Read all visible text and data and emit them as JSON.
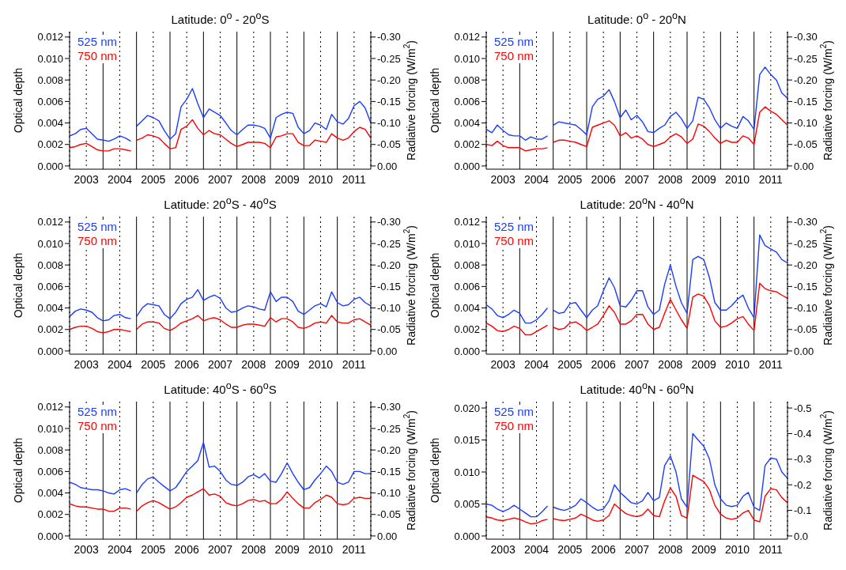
{
  "chart_data": [
    {
      "type": "line",
      "title": "Latitude: 0$^{o}$ - 20$^{o}$S",
      "ylabel": "Optical depth",
      "y2label": "Radiative  forcing (W/m$^{2}$)",
      "legend": "top left",
      "grid": "x",
      "x": [
        2003,
        2003.17,
        2003.33,
        2003.5,
        2003.67,
        2003.83,
        2004,
        2004.17,
        2004.33,
        2004.5,
        2004.67,
        2004.83,
        2004.92,
        2005,
        2005.17,
        2005.33,
        2005.5,
        2005.67,
        2005.83,
        2006,
        2006.17,
        2006.33,
        2006.5,
        2006.67,
        2006.83,
        2007,
        2007.17,
        2007.33,
        2007.5,
        2007.67,
        2007.83,
        2008,
        2008.17,
        2008.33,
        2008.5,
        2008.67,
        2008.83,
        2009,
        2009.17,
        2009.33,
        2009.5,
        2009.67,
        2009.83,
        2010,
        2010.17,
        2010.33,
        2010.5,
        2010.67,
        2010.83,
        2011,
        2011.17,
        2011.33,
        2011.5,
        2011.67,
        2011.83,
        2012
      ],
      "series": [
        {
          "name": "525 nm",
          "color": "#1a3dff",
          "values": [
            0.0028,
            0.003,
            0.0034,
            0.0035,
            0.003,
            0.0025,
            0.0024,
            0.0023,
            0.0025,
            0.0028,
            0.0026,
            0.0023,
            null,
            0.0037,
            0.0042,
            0.0047,
            0.0045,
            0.0042,
            0.0033,
            0.0025,
            0.003,
            0.0055,
            0.0062,
            0.0072,
            0.0058,
            0.0045,
            0.0053,
            0.005,
            0.0047,
            0.004,
            0.0033,
            0.0029,
            0.0034,
            0.0038,
            0.0038,
            0.0037,
            0.0035,
            0.0026,
            0.0045,
            0.0048,
            0.005,
            0.0049,
            0.0036,
            0.003,
            0.0033,
            0.004,
            0.0038,
            0.0034,
            0.0048,
            0.0041,
            0.0039,
            0.0044,
            0.0056,
            0.006,
            0.0054,
            0.004
          ]
        },
        {
          "name": "750 nm",
          "color": "#ff0000",
          "values": [
            0.0017,
            0.0018,
            0.002,
            0.0021,
            0.0018,
            0.0015,
            0.0014,
            0.0014,
            0.0016,
            0.0016,
            0.0015,
            0.0014,
            null,
            0.0024,
            0.0026,
            0.0029,
            0.0028,
            0.0026,
            0.0021,
            0.0016,
            0.0017,
            0.0034,
            0.0037,
            0.0043,
            0.0035,
            0.0029,
            0.0033,
            0.003,
            0.0029,
            0.0025,
            0.0021,
            0.0018,
            0.002,
            0.0022,
            0.0022,
            0.0022,
            0.0021,
            0.0017,
            0.0027,
            0.0028,
            0.003,
            0.003,
            0.0022,
            0.0019,
            0.0019,
            0.0024,
            0.0023,
            0.0022,
            0.003,
            0.0026,
            0.0024,
            0.0026,
            0.0032,
            0.0036,
            0.0034,
            0.0026
          ]
        }
      ],
      "xlim": [
        2003,
        2012
      ],
      "xticks": [
        {
          "value": 2003.5,
          "label": "2003"
        },
        {
          "value": 2004.5,
          "label": "2004"
        },
        {
          "value": 2005.5,
          "label": "2005"
        },
        {
          "value": 2006.5,
          "label": "2006"
        },
        {
          "value": 2007.5,
          "label": "2007"
        },
        {
          "value": 2008.5,
          "label": "2008"
        },
        {
          "value": 2009.5,
          "label": "2009"
        },
        {
          "value": 2010.5,
          "label": "2010"
        },
        {
          "value": 2011.5,
          "label": "2011"
        }
      ],
      "ylim": [
        -0.0003,
        0.0125
      ],
      "yticks": [
        {
          "value": 0,
          "label": "0.000"
        },
        {
          "value": 0.002,
          "label": "0.002"
        },
        {
          "value": 0.004,
          "label": "0.004"
        },
        {
          "value": 0.006,
          "label": "0.006"
        },
        {
          "value": 0.008,
          "label": "0.008"
        },
        {
          "value": 0.01,
          "label": "0.010"
        },
        {
          "value": 0.012,
          "label": "0.012"
        }
      ],
      "y2lim": [
        0.0075,
        -0.3125
      ],
      "y2ticks": [
        {
          "value": 0,
          "label": "0.00"
        },
        {
          "value": -0.05,
          "label": "-0.05"
        },
        {
          "value": -0.1,
          "label": "-0.10"
        },
        {
          "value": -0.15,
          "label": "-0.15"
        },
        {
          "value": -0.2,
          "label": "-0.20"
        },
        {
          "value": -0.25,
          "label": "-0.25"
        },
        {
          "value": -0.3,
          "label": "-0.30"
        }
      ],
      "ref_lines": [
        {
          "axis": "x",
          "value": 2004
        },
        {
          "axis": "x",
          "value": 2005
        },
        {
          "axis": "x",
          "value": 2006
        },
        {
          "axis": "x",
          "value": 2007
        },
        {
          "axis": "x",
          "value": 2008
        },
        {
          "axis": "x",
          "value": 2009
        },
        {
          "axis": "x",
          "value": 2010
        },
        {
          "axis": "x",
          "value": 2011
        }
      ]
    },
    {
      "type": "line",
      "title": "Latitude: 0$^{o}$ - 20$^{o}$N",
      "ylabel": "Optical depth",
      "y2label": "Radiative  forcing (W/m$^{2}$)",
      "legend": "top left",
      "grid": "x",
      "x": [
        2003,
        2003.17,
        2003.33,
        2003.5,
        2003.67,
        2003.83,
        2004,
        2004.17,
        2004.33,
        2004.5,
        2004.67,
        2004.83,
        2004.92,
        2005,
        2005.17,
        2005.33,
        2005.5,
        2005.67,
        2005.83,
        2006,
        2006.17,
        2006.33,
        2006.5,
        2006.67,
        2006.83,
        2007,
        2007.17,
        2007.33,
        2007.5,
        2007.67,
        2007.83,
        2008,
        2008.17,
        2008.33,
        2008.5,
        2008.67,
        2008.83,
        2009,
        2009.17,
        2009.33,
        2009.5,
        2009.67,
        2009.83,
        2010,
        2010.17,
        2010.33,
        2010.5,
        2010.67,
        2010.83,
        2011,
        2011.17,
        2011.33,
        2011.5,
        2011.67,
        2011.83,
        2012
      ],
      "series": [
        {
          "name": "525 nm",
          "color": "#1a3dff",
          "values": [
            0.0034,
            0.0031,
            0.0038,
            0.0033,
            0.0029,
            0.0028,
            0.0028,
            0.0024,
            0.0027,
            0.0025,
            0.0025,
            0.0028,
            null,
            0.0038,
            0.0041,
            0.004,
            0.0039,
            0.0038,
            0.0034,
            0.0029,
            0.0055,
            0.0062,
            0.0065,
            0.0071,
            0.006,
            0.0045,
            0.0052,
            0.0043,
            0.0047,
            0.0041,
            0.0032,
            0.0031,
            0.0035,
            0.0038,
            0.0046,
            0.005,
            0.0044,
            0.0035,
            0.0042,
            0.0064,
            0.0062,
            0.0054,
            0.0043,
            0.0035,
            0.004,
            0.0037,
            0.0035,
            0.0046,
            0.0042,
            0.0034,
            0.0085,
            0.0092,
            0.0085,
            0.008,
            0.0068,
            0.0063
          ]
        },
        {
          "name": "750 nm",
          "color": "#ff0000",
          "values": [
            0.002,
            0.0019,
            0.0023,
            0.0019,
            0.0017,
            0.0017,
            0.0017,
            0.0014,
            0.0015,
            0.0016,
            0.0016,
            0.0017,
            null,
            0.0022,
            0.0024,
            0.0024,
            0.0023,
            0.0022,
            0.002,
            0.0018,
            0.0036,
            0.0038,
            0.004,
            0.0042,
            0.0038,
            0.0028,
            0.0031,
            0.0026,
            0.0028,
            0.0025,
            0.002,
            0.0018,
            0.002,
            0.0022,
            0.0027,
            0.003,
            0.0027,
            0.0021,
            0.0025,
            0.0039,
            0.0037,
            0.0032,
            0.0026,
            0.0021,
            0.0024,
            0.0022,
            0.0022,
            0.0028,
            0.0026,
            0.002,
            0.005,
            0.0055,
            0.0051,
            0.0048,
            0.0043,
            0.0038
          ]
        }
      ],
      "xlim": [
        2003,
        2012
      ],
      "xticks": [
        {
          "value": 2003.5,
          "label": "2003"
        },
        {
          "value": 2004.5,
          "label": "2004"
        },
        {
          "value": 2005.5,
          "label": "2005"
        },
        {
          "value": 2006.5,
          "label": "2006"
        },
        {
          "value": 2007.5,
          "label": "2007"
        },
        {
          "value": 2008.5,
          "label": "2008"
        },
        {
          "value": 2009.5,
          "label": "2009"
        },
        {
          "value": 2010.5,
          "label": "2010"
        },
        {
          "value": 2011.5,
          "label": "2011"
        }
      ],
      "ylim": [
        -0.0003,
        0.0125
      ],
      "yticks": [
        {
          "value": 0,
          "label": "0.000"
        },
        {
          "value": 0.002,
          "label": "0.002"
        },
        {
          "value": 0.004,
          "label": "0.004"
        },
        {
          "value": 0.006,
          "label": "0.006"
        },
        {
          "value": 0.008,
          "label": "0.008"
        },
        {
          "value": 0.01,
          "label": "0.010"
        },
        {
          "value": 0.012,
          "label": "0.012"
        }
      ],
      "y2lim": [
        0.0075,
        -0.3125
      ],
      "y2ticks": [
        {
          "value": 0,
          "label": "0.00"
        },
        {
          "value": -0.05,
          "label": "-0.05"
        },
        {
          "value": -0.1,
          "label": "-0.10"
        },
        {
          "value": -0.15,
          "label": "-0.15"
        },
        {
          "value": -0.2,
          "label": "-0.20"
        },
        {
          "value": -0.25,
          "label": "-0.25"
        },
        {
          "value": -0.3,
          "label": "-0.30"
        }
      ],
      "ref_lines": [
        {
          "axis": "x",
          "value": 2004
        },
        {
          "axis": "x",
          "value": 2005
        },
        {
          "axis": "x",
          "value": 2006
        },
        {
          "axis": "x",
          "value": 2007
        },
        {
          "axis": "x",
          "value": 2008
        },
        {
          "axis": "x",
          "value": 2009
        },
        {
          "axis": "x",
          "value": 2010
        },
        {
          "axis": "x",
          "value": 2011
        }
      ]
    },
    {
      "type": "line",
      "title": "Latitude: 20$^{o}$S - 40$^{o}$S",
      "ylabel": "Optical depth",
      "y2label": "Radiative  forcing (W/m$^{2}$)",
      "legend": "top left",
      "grid": "x",
      "x": [
        2003,
        2003.17,
        2003.33,
        2003.5,
        2003.67,
        2003.83,
        2004,
        2004.17,
        2004.33,
        2004.5,
        2004.67,
        2004.83,
        2004.92,
        2005,
        2005.17,
        2005.33,
        2005.5,
        2005.67,
        2005.83,
        2006,
        2006.17,
        2006.33,
        2006.5,
        2006.67,
        2006.83,
        2007,
        2007.17,
        2007.33,
        2007.5,
        2007.67,
        2007.83,
        2008,
        2008.17,
        2008.33,
        2008.5,
        2008.67,
        2008.83,
        2009,
        2009.17,
        2009.33,
        2009.5,
        2009.67,
        2009.83,
        2010,
        2010.17,
        2010.33,
        2010.5,
        2010.67,
        2010.83,
        2011,
        2011.17,
        2011.33,
        2011.5,
        2011.67,
        2011.83,
        2012
      ],
      "series": [
        {
          "name": "525 nm",
          "color": "#1a3dff",
          "values": [
            0.0032,
            0.0037,
            0.0039,
            0.0038,
            0.0036,
            0.0031,
            0.0028,
            0.0029,
            0.0033,
            0.0034,
            0.0031,
            0.003,
            null,
            0.0032,
            0.004,
            0.0044,
            0.0043,
            0.0042,
            0.0034,
            0.003,
            0.0036,
            0.0044,
            0.0048,
            0.005,
            0.0057,
            0.0047,
            0.005,
            0.0052,
            0.0049,
            0.004,
            0.0036,
            0.0037,
            0.004,
            0.0042,
            0.0041,
            0.0039,
            0.0038,
            0.0055,
            0.0046,
            0.005,
            0.005,
            0.0046,
            0.0037,
            0.0034,
            0.0038,
            0.0042,
            0.0044,
            0.0041,
            0.0055,
            0.0045,
            0.0042,
            0.0043,
            0.0048,
            0.005,
            0.0045,
            0.0042
          ]
        },
        {
          "name": "750 nm",
          "color": "#ff0000",
          "values": [
            0.002,
            0.0022,
            0.0023,
            0.0023,
            0.0021,
            0.0018,
            0.0017,
            0.0018,
            0.002,
            0.002,
            0.0019,
            0.0018,
            null,
            0.002,
            0.0025,
            0.0027,
            0.0027,
            0.0026,
            0.0021,
            0.0019,
            0.0022,
            0.0026,
            0.0028,
            0.003,
            0.0033,
            0.0028,
            0.003,
            0.0031,
            0.0029,
            0.0025,
            0.0022,
            0.0022,
            0.0024,
            0.0025,
            0.0025,
            0.0024,
            0.0023,
            0.0031,
            0.0027,
            0.003,
            0.003,
            0.0027,
            0.0022,
            0.0021,
            0.0023,
            0.0026,
            0.0027,
            0.0026,
            0.0033,
            0.0027,
            0.0026,
            0.0026,
            0.0029,
            0.003,
            0.0027,
            0.0024
          ]
        }
      ],
      "xlim": [
        2003,
        2012
      ],
      "xticks": [
        {
          "value": 2003.5,
          "label": "2003"
        },
        {
          "value": 2004.5,
          "label": "2004"
        },
        {
          "value": 2005.5,
          "label": "2005"
        },
        {
          "value": 2006.5,
          "label": "2006"
        },
        {
          "value": 2007.5,
          "label": "2007"
        },
        {
          "value": 2008.5,
          "label": "2008"
        },
        {
          "value": 2009.5,
          "label": "2009"
        },
        {
          "value": 2010.5,
          "label": "2010"
        },
        {
          "value": 2011.5,
          "label": "2011"
        }
      ],
      "ylim": [
        -0.0003,
        0.0125
      ],
      "yticks": [
        {
          "value": 0,
          "label": "0.000"
        },
        {
          "value": 0.002,
          "label": "0.002"
        },
        {
          "value": 0.004,
          "label": "0.004"
        },
        {
          "value": 0.006,
          "label": "0.006"
        },
        {
          "value": 0.008,
          "label": "0.008"
        },
        {
          "value": 0.01,
          "label": "0.010"
        },
        {
          "value": 0.012,
          "label": "0.012"
        }
      ],
      "y2lim": [
        0.0075,
        -0.3125
      ],
      "y2ticks": [
        {
          "value": 0,
          "label": "0.00"
        },
        {
          "value": -0.05,
          "label": "-0.05"
        },
        {
          "value": -0.1,
          "label": "-0.10"
        },
        {
          "value": -0.15,
          "label": "-0.15"
        },
        {
          "value": -0.2,
          "label": "-0.20"
        },
        {
          "value": -0.25,
          "label": "-0.25"
        },
        {
          "value": -0.3,
          "label": "-0.30"
        }
      ],
      "ref_lines": [
        {
          "axis": "x",
          "value": 2004
        },
        {
          "axis": "x",
          "value": 2005
        },
        {
          "axis": "x",
          "value": 2006
        },
        {
          "axis": "x",
          "value": 2007
        },
        {
          "axis": "x",
          "value": 2008
        },
        {
          "axis": "x",
          "value": 2009
        },
        {
          "axis": "x",
          "value": 2010
        },
        {
          "axis": "x",
          "value": 2011
        }
      ]
    },
    {
      "type": "line",
      "title": "Latitude: 20$^{o}$N - 40$^{o}$N",
      "ylabel": "Optical depth",
      "y2label": "Radiative  forcing (W/m$^{2}$)",
      "legend": "top left",
      "grid": "x",
      "x": [
        2003,
        2003.17,
        2003.33,
        2003.5,
        2003.67,
        2003.83,
        2004,
        2004.17,
        2004.33,
        2004.5,
        2004.67,
        2004.83,
        2004.92,
        2005,
        2005.17,
        2005.33,
        2005.5,
        2005.67,
        2005.83,
        2006,
        2006.17,
        2006.33,
        2006.5,
        2006.67,
        2006.83,
        2007,
        2007.17,
        2007.33,
        2007.5,
        2007.67,
        2007.83,
        2008,
        2008.17,
        2008.33,
        2008.5,
        2008.67,
        2008.83,
        2009,
        2009.17,
        2009.33,
        2009.5,
        2009.67,
        2009.83,
        2010,
        2010.17,
        2010.33,
        2010.5,
        2010.67,
        2010.83,
        2011,
        2011.17,
        2011.33,
        2011.5,
        2011.67,
        2011.83,
        2012
      ],
      "series": [
        {
          "name": "525 nm",
          "color": "#1a3dff",
          "values": [
            0.0043,
            0.0039,
            0.0033,
            0.0031,
            0.0034,
            0.0038,
            0.0035,
            0.0026,
            0.0026,
            0.0029,
            0.0034,
            0.004,
            null,
            0.0038,
            0.0035,
            0.0036,
            0.0044,
            0.0045,
            0.0038,
            0.0031,
            0.0038,
            0.0042,
            0.0056,
            0.0068,
            0.0059,
            0.0042,
            0.0041,
            0.0047,
            0.0056,
            0.0056,
            0.0041,
            0.0034,
            0.0038,
            0.0062,
            0.008,
            0.006,
            0.0045,
            0.0035,
            0.0085,
            0.0088,
            0.0085,
            0.0068,
            0.0045,
            0.0038,
            0.0038,
            0.0042,
            0.0048,
            0.0052,
            0.004,
            0.0031,
            0.0108,
            0.0098,
            0.0095,
            0.0092,
            0.0085,
            0.0082
          ]
        },
        {
          "name": "750 nm",
          "color": "#ff0000",
          "values": [
            0.0026,
            0.0023,
            0.0019,
            0.0018,
            0.002,
            0.0023,
            0.0021,
            0.0015,
            0.0015,
            0.0018,
            0.0021,
            0.0024,
            null,
            0.0022,
            0.002,
            0.0021,
            0.0026,
            0.0027,
            0.0024,
            0.0019,
            0.0022,
            0.0025,
            0.0033,
            0.0042,
            0.0036,
            0.0025,
            0.0025,
            0.0028,
            0.0034,
            0.0034,
            0.0025,
            0.002,
            0.0022,
            0.0035,
            0.0048,
            0.0038,
            0.0029,
            0.0021,
            0.005,
            0.0053,
            0.0051,
            0.0042,
            0.0028,
            0.0022,
            0.0023,
            0.0026,
            0.003,
            0.0032,
            0.0025,
            0.0019,
            0.0063,
            0.0058,
            0.0056,
            0.0055,
            0.0052,
            0.0049
          ]
        }
      ],
      "xlim": [
        2003,
        2012
      ],
      "xticks": [
        {
          "value": 2003.5,
          "label": "2003"
        },
        {
          "value": 2004.5,
          "label": "2004"
        },
        {
          "value": 2005.5,
          "label": "2005"
        },
        {
          "value": 2006.5,
          "label": "2006"
        },
        {
          "value": 2007.5,
          "label": "2007"
        },
        {
          "value": 2008.5,
          "label": "2008"
        },
        {
          "value": 2009.5,
          "label": "2009"
        },
        {
          "value": 2010.5,
          "label": "2010"
        },
        {
          "value": 2011.5,
          "label": "2011"
        }
      ],
      "ylim": [
        -0.0003,
        0.0125
      ],
      "yticks": [
        {
          "value": 0,
          "label": "0.000"
        },
        {
          "value": 0.002,
          "label": "0.002"
        },
        {
          "value": 0.004,
          "label": "0.004"
        },
        {
          "value": 0.006,
          "label": "0.006"
        },
        {
          "value": 0.008,
          "label": "0.008"
        },
        {
          "value": 0.01,
          "label": "0.010"
        },
        {
          "value": 0.012,
          "label": "0.012"
        }
      ],
      "y2lim": [
        0.0075,
        -0.3125
      ],
      "y2ticks": [
        {
          "value": 0,
          "label": "0.00"
        },
        {
          "value": -0.05,
          "label": "-0.05"
        },
        {
          "value": -0.1,
          "label": "-0.10"
        },
        {
          "value": -0.15,
          "label": "-0.15"
        },
        {
          "value": -0.2,
          "label": "-0.20"
        },
        {
          "value": -0.25,
          "label": "-0.25"
        },
        {
          "value": -0.3,
          "label": "-0.30"
        }
      ],
      "ref_lines": [
        {
          "axis": "x",
          "value": 2004
        },
        {
          "axis": "x",
          "value": 2005
        },
        {
          "axis": "x",
          "value": 2006
        },
        {
          "axis": "x",
          "value": 2007
        },
        {
          "axis": "x",
          "value": 2008
        },
        {
          "axis": "x",
          "value": 2009
        },
        {
          "axis": "x",
          "value": 2010
        },
        {
          "axis": "x",
          "value": 2011
        }
      ]
    },
    {
      "type": "line",
      "title": "Latitude: 40$^{o}$S - 60$^{o}$S",
      "ylabel": "Optical depth",
      "y2label": "Radiative  forcing (W/m$^{2}$)",
      "legend": "top left",
      "grid": "x",
      "x": [
        2003,
        2003.17,
        2003.33,
        2003.5,
        2003.67,
        2003.83,
        2004,
        2004.17,
        2004.33,
        2004.5,
        2004.67,
        2004.83,
        2004.92,
        2005,
        2005.17,
        2005.33,
        2005.5,
        2005.67,
        2005.83,
        2006,
        2006.17,
        2006.33,
        2006.5,
        2006.67,
        2006.83,
        2007,
        2007.17,
        2007.33,
        2007.5,
        2007.67,
        2007.83,
        2008,
        2008.17,
        2008.33,
        2008.5,
        2008.67,
        2008.83,
        2009,
        2009.17,
        2009.33,
        2009.5,
        2009.67,
        2009.83,
        2010,
        2010.17,
        2010.33,
        2010.5,
        2010.67,
        2010.83,
        2011,
        2011.17,
        2011.33,
        2011.5,
        2011.67,
        2011.83,
        2012
      ],
      "series": [
        {
          "name": "525 nm",
          "color": "#1a3dff",
          "values": [
            0.005,
            0.0048,
            0.0045,
            0.0044,
            0.0043,
            0.0043,
            0.0042,
            0.004,
            0.0039,
            0.0043,
            0.0044,
            0.0042,
            null,
            0.004,
            0.0048,
            0.0053,
            0.0055,
            0.005,
            0.0046,
            0.0042,
            0.0045,
            0.0052,
            0.006,
            0.0065,
            0.007,
            0.0087,
            0.0064,
            0.0065,
            0.006,
            0.0052,
            0.0048,
            0.0047,
            0.005,
            0.0055,
            0.0057,
            0.0054,
            0.0058,
            0.0051,
            0.005,
            0.0058,
            0.0068,
            0.0058,
            0.005,
            0.0043,
            0.0045,
            0.0052,
            0.0058,
            0.0065,
            0.006,
            0.005,
            0.0048,
            0.005,
            0.006,
            0.006,
            0.0058,
            0.0058
          ]
        },
        {
          "name": "750 nm",
          "color": "#ff0000",
          "values": [
            0.003,
            0.0028,
            0.0027,
            0.0027,
            0.0026,
            0.0025,
            0.0025,
            0.0023,
            0.0023,
            0.0026,
            0.0026,
            0.0025,
            null,
            0.0023,
            0.0028,
            0.0031,
            0.0033,
            0.0031,
            0.0028,
            0.0025,
            0.0027,
            0.0031,
            0.0036,
            0.0038,
            0.0041,
            0.0044,
            0.0038,
            0.0039,
            0.0037,
            0.0031,
            0.0029,
            0.0028,
            0.003,
            0.0033,
            0.0034,
            0.0032,
            0.0033,
            0.003,
            0.003,
            0.0034,
            0.0041,
            0.0035,
            0.003,
            0.0026,
            0.0026,
            0.0031,
            0.0034,
            0.0038,
            0.0036,
            0.003,
            0.0029,
            0.003,
            0.0035,
            0.0036,
            0.0035,
            0.0035
          ]
        }
      ],
      "xlim": [
        2003,
        2012
      ],
      "xticks": [
        {
          "value": 2003.5,
          "label": "2003"
        },
        {
          "value": 2004.5,
          "label": "2004"
        },
        {
          "value": 2005.5,
          "label": "2005"
        },
        {
          "value": 2006.5,
          "label": "2006"
        },
        {
          "value": 2007.5,
          "label": "2007"
        },
        {
          "value": 2008.5,
          "label": "2008"
        },
        {
          "value": 2009.5,
          "label": "2009"
        },
        {
          "value": 2010.5,
          "label": "2010"
        },
        {
          "value": 2011.5,
          "label": "2011"
        }
      ],
      "ylim": [
        -0.0003,
        0.0125
      ],
      "yticks": [
        {
          "value": 0,
          "label": "0.000"
        },
        {
          "value": 0.002,
          "label": "0.002"
        },
        {
          "value": 0.004,
          "label": "0.004"
        },
        {
          "value": 0.006,
          "label": "0.006"
        },
        {
          "value": 0.008,
          "label": "0.008"
        },
        {
          "value": 0.01,
          "label": "0.010"
        },
        {
          "value": 0.012,
          "label": "0.012"
        }
      ],
      "y2lim": [
        0.0075,
        -0.3125
      ],
      "y2ticks": [
        {
          "value": 0,
          "label": "0.00"
        },
        {
          "value": -0.05,
          "label": "-0.05"
        },
        {
          "value": -0.1,
          "label": "-0.10"
        },
        {
          "value": -0.15,
          "label": "-0.15"
        },
        {
          "value": -0.2,
          "label": "-0.20"
        },
        {
          "value": -0.25,
          "label": "-0.25"
        },
        {
          "value": -0.3,
          "label": "-0.30"
        }
      ],
      "ref_lines": [
        {
          "axis": "x",
          "value": 2004
        },
        {
          "axis": "x",
          "value": 2005
        },
        {
          "axis": "x",
          "value": 2006
        },
        {
          "axis": "x",
          "value": 2007
        },
        {
          "axis": "x",
          "value": 2008
        },
        {
          "axis": "x",
          "value": 2009
        },
        {
          "axis": "x",
          "value": 2010
        },
        {
          "axis": "x",
          "value": 2011
        }
      ]
    },
    {
      "type": "line",
      "title": "Latitude: 40$^{o}$N - 60$^{o}$N",
      "ylabel": "Optical depth",
      "y2label": "Radiative  forcing (W/m$^{2}$)",
      "legend": "top left",
      "grid": "x",
      "x": [
        2003,
        2003.17,
        2003.33,
        2003.5,
        2003.67,
        2003.83,
        2004,
        2004.17,
        2004.33,
        2004.5,
        2004.67,
        2004.83,
        2004.92,
        2005,
        2005.17,
        2005.33,
        2005.5,
        2005.67,
        2005.83,
        2006,
        2006.17,
        2006.33,
        2006.5,
        2006.67,
        2006.83,
        2007,
        2007.17,
        2007.33,
        2007.5,
        2007.67,
        2007.83,
        2008,
        2008.17,
        2008.33,
        2008.5,
        2008.67,
        2008.83,
        2009,
        2009.17,
        2009.33,
        2009.5,
        2009.67,
        2009.83,
        2010,
        2010.17,
        2010.33,
        2010.5,
        2010.67,
        2010.83,
        2011,
        2011.17,
        2011.33,
        2011.5,
        2011.67,
        2011.83,
        2012
      ],
      "series": [
        {
          "name": "525 nm",
          "color": "#1a3dff",
          "values": [
            0.005,
            0.0048,
            0.0042,
            0.0038,
            0.0042,
            0.0048,
            0.0042,
            0.0036,
            0.003,
            0.003,
            0.0038,
            0.0047,
            null,
            0.0045,
            0.0042,
            0.004,
            0.0043,
            0.0048,
            0.0058,
            0.0052,
            0.0045,
            0.004,
            0.0042,
            0.0055,
            0.008,
            0.0068,
            0.006,
            0.0052,
            0.005,
            0.0055,
            0.0068,
            0.0055,
            0.006,
            0.011,
            0.0125,
            0.01,
            0.0058,
            0.0045,
            0.016,
            0.015,
            0.014,
            0.012,
            0.008,
            0.0058,
            0.0048,
            0.0046,
            0.0048,
            0.0062,
            0.0068,
            0.0045,
            0.004,
            0.011,
            0.0122,
            0.012,
            0.01,
            0.009
          ]
        },
        {
          "name": "750 nm",
          "color": "#ff0000",
          "values": [
            0.003,
            0.0028,
            0.0025,
            0.0024,
            0.0026,
            0.0028,
            0.0026,
            0.0022,
            0.0019,
            0.002,
            0.0024,
            0.0026,
            null,
            0.0027,
            0.0025,
            0.0024,
            0.0026,
            0.0028,
            0.0034,
            0.003,
            0.0025,
            0.0023,
            0.0025,
            0.0032,
            0.005,
            0.0042,
            0.0035,
            0.0032,
            0.003,
            0.0033,
            0.0042,
            0.0032,
            0.003,
            0.0055,
            0.0075,
            0.0062,
            0.0032,
            0.0028,
            0.0095,
            0.009,
            0.0085,
            0.0072,
            0.0048,
            0.0034,
            0.0028,
            0.0026,
            0.0028,
            0.0036,
            0.004,
            0.0025,
            0.0022,
            0.0062,
            0.0074,
            0.0072,
            0.006,
            0.0052
          ]
        }
      ],
      "xlim": [
        2003,
        2012
      ],
      "xticks": [
        {
          "value": 2003.5,
          "label": "2003"
        },
        {
          "value": 2004.5,
          "label": "2004"
        },
        {
          "value": 2005.5,
          "label": "2005"
        },
        {
          "value": 2006.5,
          "label": "2006"
        },
        {
          "value": 2007.5,
          "label": "2007"
        },
        {
          "value": 2008.5,
          "label": "2008"
        },
        {
          "value": 2009.5,
          "label": "2009"
        },
        {
          "value": 2010.5,
          "label": "2010"
        },
        {
          "value": 2011.5,
          "label": "2011"
        }
      ],
      "ylim": [
        -0.0005,
        0.021
      ],
      "yticks": [
        {
          "value": 0,
          "label": "0.000"
        },
        {
          "value": 0.005,
          "label": "0.005"
        },
        {
          "value": 0.01,
          "label": "0.010"
        },
        {
          "value": 0.015,
          "label": "0.015"
        },
        {
          "value": 0.02,
          "label": "0.020"
        }
      ],
      "y2lim": [
        0.0125,
        -0.525
      ],
      "y2ticks": [
        {
          "value": 0,
          "label": "0.0"
        },
        {
          "value": -0.1,
          "label": "-0.1"
        },
        {
          "value": -0.2,
          "label": "-0.2"
        },
        {
          "value": -0.3,
          "label": "-0.3"
        },
        {
          "value": -0.4,
          "label": "-0.4"
        },
        {
          "value": -0.5,
          "label": "-0.5"
        }
      ],
      "ref_lines": [
        {
          "axis": "x",
          "value": 2004
        },
        {
          "axis": "x",
          "value": 2005
        },
        {
          "axis": "x",
          "value": 2006
        },
        {
          "axis": "x",
          "value": 2007
        },
        {
          "axis": "x",
          "value": 2008
        },
        {
          "axis": "x",
          "value": 2009
        },
        {
          "axis": "x",
          "value": 2010
        },
        {
          "axis": "x",
          "value": 2011
        }
      ]
    }
  ]
}
